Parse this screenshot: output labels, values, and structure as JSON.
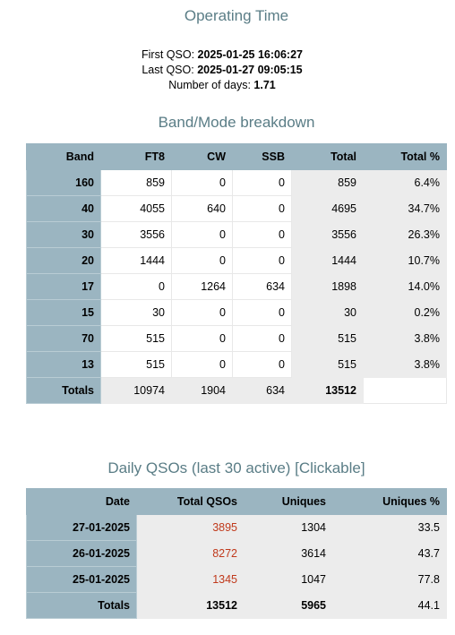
{
  "operating_time": {
    "title": "Operating Time",
    "first_label": "First QSO:",
    "first_value": "2025-01-25 16:06:27",
    "last_label": "Last QSO:",
    "last_value": "2025-01-27 09:05:15",
    "days_label": "Number of days:",
    "days_value": "1.71"
  },
  "band_mode": {
    "title": "Band/Mode breakdown",
    "headers": [
      "Band",
      "FT8",
      "CW",
      "SSB",
      "Total",
      "Total %"
    ],
    "rows": [
      {
        "band": "160",
        "ft8": "859",
        "cw": "0",
        "ssb": "0",
        "total": "859",
        "pct": "6.4%"
      },
      {
        "band": "40",
        "ft8": "4055",
        "cw": "640",
        "ssb": "0",
        "total": "4695",
        "pct": "34.7%"
      },
      {
        "band": "30",
        "ft8": "3556",
        "cw": "0",
        "ssb": "0",
        "total": "3556",
        "pct": "26.3%"
      },
      {
        "band": "20",
        "ft8": "1444",
        "cw": "0",
        "ssb": "0",
        "total": "1444",
        "pct": "10.7%"
      },
      {
        "band": "17",
        "ft8": "0",
        "cw": "1264",
        "ssb": "634",
        "total": "1898",
        "pct": "14.0%"
      },
      {
        "band": "15",
        "ft8": "30",
        "cw": "0",
        "ssb": "0",
        "total": "30",
        "pct": "0.2%"
      },
      {
        "band": "70",
        "ft8": "515",
        "cw": "0",
        "ssb": "0",
        "total": "515",
        "pct": "3.8%"
      },
      {
        "band": "13",
        "ft8": "515",
        "cw": "0",
        "ssb": "0",
        "total": "515",
        "pct": "3.8%"
      }
    ],
    "totals": {
      "label": "Totals",
      "ft8": "10974",
      "cw": "1904",
      "ssb": "634",
      "total": "13512"
    }
  },
  "daily": {
    "title": "Daily QSOs (last 30 active) [Clickable]",
    "headers": [
      "Date",
      "Total QSOs",
      "Uniques",
      "Uniques %"
    ],
    "rows": [
      {
        "date": "27-01-2025",
        "total": "3895",
        "uniques": "1304",
        "pct": "33.5"
      },
      {
        "date": "26-01-2025",
        "total": "8272",
        "uniques": "3614",
        "pct": "43.7"
      },
      {
        "date": "25-01-2025",
        "total": "1345",
        "uniques": "1047",
        "pct": "77.8"
      }
    ],
    "totals": {
      "label": "Totals",
      "total": "13512",
      "uniques": "5965",
      "pct": "44.1"
    }
  },
  "colors": {
    "header_bg": "#9bb5c1",
    "title": "#5a7d86",
    "link": "#c0391b",
    "shade": "#ececec"
  }
}
